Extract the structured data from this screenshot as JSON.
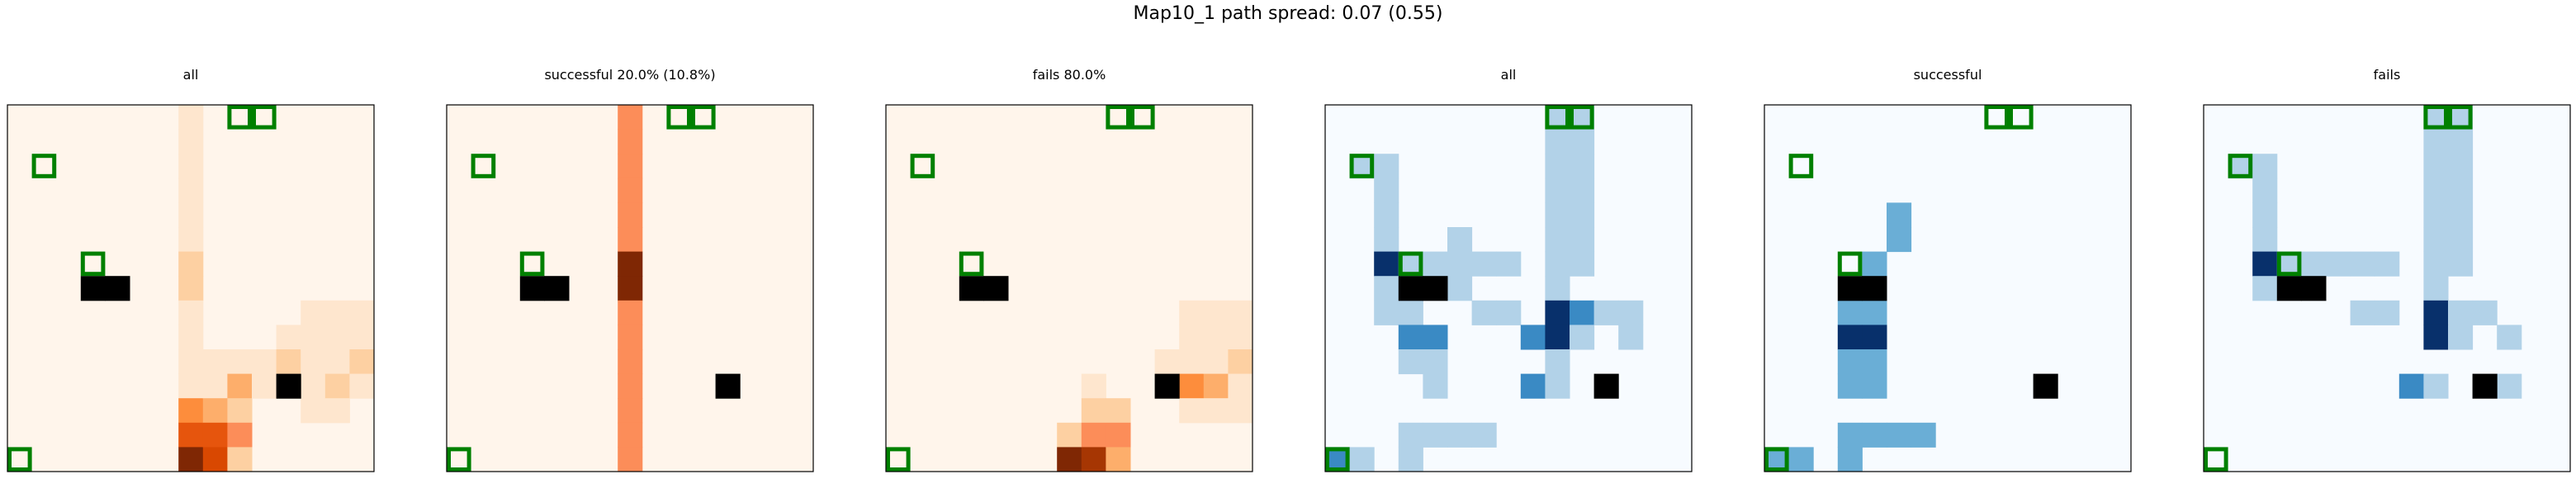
{
  "figure": {
    "suptitle": "Map10_1 path spread: 0.07 (0.55)"
  },
  "chart_data": [
    {
      "type": "heatmap",
      "title": "all",
      "colormap": "Oranges",
      "grid": [
        15,
        15
      ],
      "heat": [
        [
          7,
          0,
          1
        ],
        [
          7,
          1,
          1
        ],
        [
          7,
          2,
          1
        ],
        [
          7,
          3,
          1
        ],
        [
          7,
          4,
          1
        ],
        [
          7,
          5,
          1
        ],
        [
          7,
          6,
          2
        ],
        [
          7,
          7,
          2
        ],
        [
          7,
          8,
          1
        ],
        [
          7,
          9,
          1
        ],
        [
          7,
          10,
          1
        ],
        [
          7,
          11,
          1
        ],
        [
          7,
          12,
          4
        ],
        [
          7,
          13,
          6
        ],
        [
          7,
          14,
          9
        ],
        [
          8,
          10,
          1
        ],
        [
          8,
          11,
          1
        ],
        [
          8,
          12,
          3
        ],
        [
          8,
          13,
          6
        ],
        [
          8,
          14,
          7
        ],
        [
          9,
          10,
          1
        ],
        [
          9,
          11,
          3
        ],
        [
          9,
          12,
          2
        ],
        [
          9,
          13,
          5
        ],
        [
          9,
          14,
          2
        ],
        [
          10,
          10,
          1
        ],
        [
          10,
          11,
          1
        ],
        [
          11,
          9,
          1
        ],
        [
          11,
          10,
          2
        ],
        [
          11,
          11,
          1
        ],
        [
          12,
          8,
          1
        ],
        [
          12,
          9,
          1
        ],
        [
          12,
          10,
          1
        ],
        [
          12,
          11,
          1
        ],
        [
          12,
          12,
          1
        ],
        [
          13,
          8,
          1
        ],
        [
          13,
          9,
          1
        ],
        [
          13,
          10,
          1
        ],
        [
          13,
          11,
          2
        ],
        [
          13,
          12,
          1
        ],
        [
          14,
          8,
          1
        ],
        [
          14,
          9,
          1
        ],
        [
          14,
          10,
          2
        ],
        [
          14,
          11,
          1
        ]
      ],
      "obstacles": [
        [
          3,
          7
        ],
        [
          4,
          7
        ],
        [
          11,
          11
        ]
      ],
      "goals": [
        [
          0,
          14
        ],
        [
          1,
          2
        ],
        [
          9,
          0
        ],
        [
          10,
          0
        ],
        [
          3,
          6
        ]
      ]
    },
    {
      "type": "heatmap",
      "title": "successful 20.0% (10.8%)",
      "colormap": "Oranges",
      "grid": [
        15,
        15
      ],
      "heat": [
        [
          7,
          0,
          5
        ],
        [
          7,
          1,
          5
        ],
        [
          7,
          2,
          5
        ],
        [
          7,
          3,
          5
        ],
        [
          7,
          4,
          5
        ],
        [
          7,
          5,
          5
        ],
        [
          7,
          6,
          9
        ],
        [
          7,
          7,
          9
        ],
        [
          7,
          8,
          5
        ],
        [
          7,
          9,
          5
        ],
        [
          7,
          10,
          5
        ],
        [
          7,
          11,
          5
        ],
        [
          7,
          12,
          5
        ],
        [
          7,
          13,
          5
        ],
        [
          7,
          14,
          5
        ]
      ],
      "obstacles": [
        [
          3,
          7
        ],
        [
          4,
          7
        ],
        [
          11,
          11
        ]
      ],
      "goals": [
        [
          0,
          14
        ],
        [
          1,
          2
        ],
        [
          9,
          0
        ],
        [
          10,
          0
        ],
        [
          3,
          6
        ]
      ]
    },
    {
      "type": "heatmap",
      "title": "fails 80.0%",
      "colormap": "Oranges",
      "grid": [
        15,
        15
      ],
      "heat": [
        [
          7,
          13,
          2
        ],
        [
          7,
          14,
          9
        ],
        [
          8,
          11,
          1
        ],
        [
          8,
          12,
          2
        ],
        [
          8,
          13,
          5
        ],
        [
          8,
          14,
          8
        ],
        [
          9,
          12,
          2
        ],
        [
          9,
          13,
          5
        ],
        [
          9,
          14,
          3
        ],
        [
          11,
          10,
          1
        ],
        [
          11,
          11,
          1
        ],
        [
          12,
          8,
          1
        ],
        [
          12,
          9,
          1
        ],
        [
          12,
          10,
          1
        ],
        [
          12,
          11,
          4
        ],
        [
          12,
          12,
          1
        ],
        [
          13,
          8,
          1
        ],
        [
          13,
          9,
          1
        ],
        [
          13,
          10,
          1
        ],
        [
          13,
          11,
          3
        ],
        [
          13,
          12,
          1
        ],
        [
          14,
          8,
          1
        ],
        [
          14,
          9,
          1
        ],
        [
          14,
          10,
          2
        ],
        [
          14,
          11,
          1
        ],
        [
          14,
          12,
          1
        ]
      ],
      "obstacles": [
        [
          3,
          7
        ],
        [
          4,
          7
        ],
        [
          11,
          11
        ]
      ],
      "goals": [
        [
          0,
          14
        ],
        [
          1,
          2
        ],
        [
          9,
          0
        ],
        [
          10,
          0
        ],
        [
          3,
          6
        ]
      ]
    },
    {
      "type": "heatmap",
      "title": "all",
      "colormap": "Blues",
      "grid": [
        15,
        15
      ],
      "heat": [
        [
          9,
          0,
          1
        ],
        [
          10,
          0,
          1
        ],
        [
          9,
          1,
          1
        ],
        [
          10,
          1,
          1
        ],
        [
          1,
          2,
          1
        ],
        [
          2,
          2,
          1
        ],
        [
          9,
          2,
          1
        ],
        [
          10,
          2,
          1
        ],
        [
          2,
          3,
          1
        ],
        [
          9,
          3,
          1
        ],
        [
          10,
          3,
          1
        ],
        [
          2,
          4,
          1
        ],
        [
          9,
          4,
          1
        ],
        [
          10,
          4,
          1
        ],
        [
          2,
          5,
          1
        ],
        [
          5,
          5,
          1
        ],
        [
          9,
          5,
          1
        ],
        [
          10,
          5,
          1
        ],
        [
          2,
          6,
          9
        ],
        [
          3,
          6,
          1
        ],
        [
          4,
          6,
          1
        ],
        [
          5,
          6,
          1
        ],
        [
          6,
          6,
          1
        ],
        [
          7,
          6,
          1
        ],
        [
          9,
          6,
          1
        ],
        [
          10,
          6,
          1
        ],
        [
          2,
          7,
          1
        ],
        [
          5,
          7,
          1
        ],
        [
          9,
          7,
          1
        ],
        [
          2,
          8,
          1
        ],
        [
          3,
          8,
          1
        ],
        [
          6,
          8,
          1
        ],
        [
          7,
          8,
          1
        ],
        [
          9,
          8,
          9
        ],
        [
          10,
          8,
          5
        ],
        [
          11,
          8,
          1
        ],
        [
          12,
          8,
          1
        ],
        [
          3,
          9,
          5
        ],
        [
          4,
          9,
          5
        ],
        [
          8,
          9,
          5
        ],
        [
          9,
          9,
          9
        ],
        [
          10,
          9,
          1
        ],
        [
          12,
          9,
          1
        ],
        [
          3,
          10,
          1
        ],
        [
          4,
          10,
          1
        ],
        [
          9,
          10,
          1
        ],
        [
          4,
          11,
          1
        ],
        [
          8,
          11,
          5
        ],
        [
          9,
          11,
          1
        ],
        [
          3,
          13,
          1
        ],
        [
          4,
          13,
          1
        ],
        [
          5,
          13,
          1
        ],
        [
          6,
          13,
          1
        ],
        [
          0,
          14,
          5
        ],
        [
          1,
          14,
          1
        ],
        [
          3,
          14,
          1
        ]
      ],
      "obstacles": [
        [
          3,
          7
        ],
        [
          4,
          7
        ],
        [
          11,
          11
        ]
      ],
      "goals": [
        [
          0,
          14
        ],
        [
          1,
          2
        ],
        [
          9,
          0
        ],
        [
          10,
          0
        ],
        [
          3,
          6
        ]
      ]
    },
    {
      "type": "heatmap",
      "title": "successful",
      "colormap": "Blues",
      "grid": [
        15,
        15
      ],
      "heat": [
        [
          5,
          4,
          4
        ],
        [
          5,
          5,
          4
        ],
        [
          4,
          6,
          4
        ],
        [
          4,
          7,
          4
        ],
        [
          3,
          8,
          4
        ],
        [
          4,
          8,
          4
        ],
        [
          3,
          9,
          9
        ],
        [
          4,
          9,
          9
        ],
        [
          3,
          10,
          4
        ],
        [
          4,
          10,
          4
        ],
        [
          3,
          11,
          4
        ],
        [
          4,
          11,
          4
        ],
        [
          3,
          13,
          4
        ],
        [
          4,
          13,
          4
        ],
        [
          5,
          13,
          4
        ],
        [
          6,
          13,
          4
        ],
        [
          0,
          14,
          4
        ],
        [
          1,
          14,
          4
        ],
        [
          3,
          14,
          4
        ]
      ],
      "obstacles": [
        [
          3,
          7
        ],
        [
          4,
          7
        ],
        [
          11,
          11
        ]
      ],
      "goals": [
        [
          0,
          14
        ],
        [
          1,
          2
        ],
        [
          9,
          0
        ],
        [
          10,
          0
        ],
        [
          3,
          6
        ]
      ]
    },
    {
      "type": "heatmap",
      "title": "fails",
      "colormap": "Blues",
      "grid": [
        15,
        15
      ],
      "heat": [
        [
          9,
          0,
          1
        ],
        [
          10,
          0,
          1
        ],
        [
          9,
          1,
          1
        ],
        [
          10,
          1,
          1
        ],
        [
          1,
          2,
          1
        ],
        [
          2,
          2,
          1
        ],
        [
          9,
          2,
          1
        ],
        [
          10,
          2,
          1
        ],
        [
          2,
          3,
          1
        ],
        [
          9,
          3,
          1
        ],
        [
          10,
          3,
          1
        ],
        [
          2,
          4,
          1
        ],
        [
          9,
          4,
          1
        ],
        [
          10,
          4,
          1
        ],
        [
          2,
          5,
          1
        ],
        [
          9,
          5,
          1
        ],
        [
          10,
          5,
          1
        ],
        [
          2,
          6,
          9
        ],
        [
          3,
          6,
          1
        ],
        [
          4,
          6,
          1
        ],
        [
          5,
          6,
          1
        ],
        [
          6,
          6,
          1
        ],
        [
          7,
          6,
          1
        ],
        [
          9,
          6,
          1
        ],
        [
          10,
          6,
          1
        ],
        [
          2,
          7,
          1
        ],
        [
          9,
          7,
          1
        ],
        [
          6,
          8,
          1
        ],
        [
          7,
          8,
          1
        ],
        [
          9,
          8,
          9
        ],
        [
          10,
          8,
          1
        ],
        [
          11,
          8,
          1
        ],
        [
          9,
          9,
          9
        ],
        [
          10,
          9,
          1
        ],
        [
          12,
          9,
          1
        ],
        [
          8,
          11,
          5
        ],
        [
          9,
          11,
          1
        ],
        [
          12,
          11,
          1
        ]
      ],
      "obstacles": [
        [
          3,
          7
        ],
        [
          4,
          7
        ],
        [
          11,
          11
        ]
      ],
      "goals": [
        [
          0,
          14
        ],
        [
          1,
          2
        ],
        [
          9,
          0
        ],
        [
          10,
          0
        ],
        [
          3,
          6
        ]
      ]
    }
  ]
}
